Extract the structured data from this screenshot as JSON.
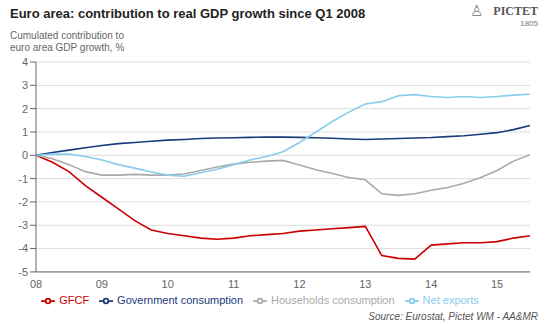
{
  "chart_data": {
    "type": "line",
    "title": "Euro area: contribution to real GDP growth since Q1 2008",
    "ylabel": "Cumulated contribution to\neuro area GDP growth, %",
    "annotations": [
      "Source: Eurostat, Pictet WM - AA&MR",
      "PICTET",
      "1805",
      "♙"
    ],
    "categories": [
      "08",
      null,
      null,
      null,
      "09",
      null,
      null,
      null,
      "10",
      null,
      null,
      null,
      "11",
      null,
      null,
      null,
      "12",
      null,
      null,
      null,
      "13",
      null,
      null,
      null,
      "14",
      null,
      null,
      null,
      "15",
      null,
      null
    ],
    "series": [
      {
        "name": "GFCF",
        "color": "#cc0000",
        "values": [
          0,
          -0.3,
          -0.7,
          -1.3,
          -1.8,
          -2.3,
          -2.8,
          -3.2,
          -3.35,
          -3.45,
          -3.55,
          -3.6,
          -3.55,
          -3.45,
          -3.4,
          -3.35,
          -3.25,
          -3.2,
          -3.15,
          -3.1,
          -3.05,
          -4.3,
          -4.42,
          -4.45,
          -3.85,
          -3.8,
          -3.75,
          -3.75,
          -3.7,
          -3.55,
          -3.45
        ]
      },
      {
        "name": "Households consumption",
        "color": "#aaaaaa",
        "values": [
          0,
          -0.15,
          -0.4,
          -0.7,
          -0.85,
          -0.85,
          -0.82,
          -0.85,
          -0.85,
          -0.8,
          -0.65,
          -0.5,
          -0.38,
          -0.3,
          -0.25,
          -0.22,
          -0.42,
          -0.62,
          -0.78,
          -0.95,
          -1.05,
          -1.65,
          -1.72,
          -1.65,
          -1.5,
          -1.38,
          -1.2,
          -0.95,
          -0.65,
          -0.25,
          0.02
        ]
      },
      {
        "name": "Government consumption",
        "color": "#1a3a7a",
        "values": [
          0,
          0.12,
          0.22,
          0.32,
          0.42,
          0.5,
          0.55,
          0.6,
          0.65,
          0.68,
          0.72,
          0.74,
          0.75,
          0.77,
          0.78,
          0.78,
          0.77,
          0.75,
          0.73,
          0.7,
          0.68,
          0.7,
          0.72,
          0.74,
          0.76,
          0.8,
          0.84,
          0.9,
          0.97,
          1.1,
          1.28
        ]
      },
      {
        "name": "Net exports",
        "color": "#88ccee",
        "values": [
          0,
          0.05,
          0.05,
          -0.05,
          -0.2,
          -0.4,
          -0.55,
          -0.72,
          -0.85,
          -0.9,
          -0.75,
          -0.6,
          -0.4,
          -0.2,
          -0.05,
          0.15,
          0.55,
          1.0,
          1.45,
          1.85,
          2.2,
          2.3,
          2.55,
          2.6,
          2.52,
          2.48,
          2.52,
          2.48,
          2.52,
          2.58,
          2.62
        ]
      }
    ],
    "ylim": [
      -5,
      4
    ],
    "yticks": [
      -5,
      -4,
      -3,
      -2,
      -1,
      0,
      1,
      2,
      3,
      4
    ],
    "grid": true,
    "legend": "bottom"
  }
}
